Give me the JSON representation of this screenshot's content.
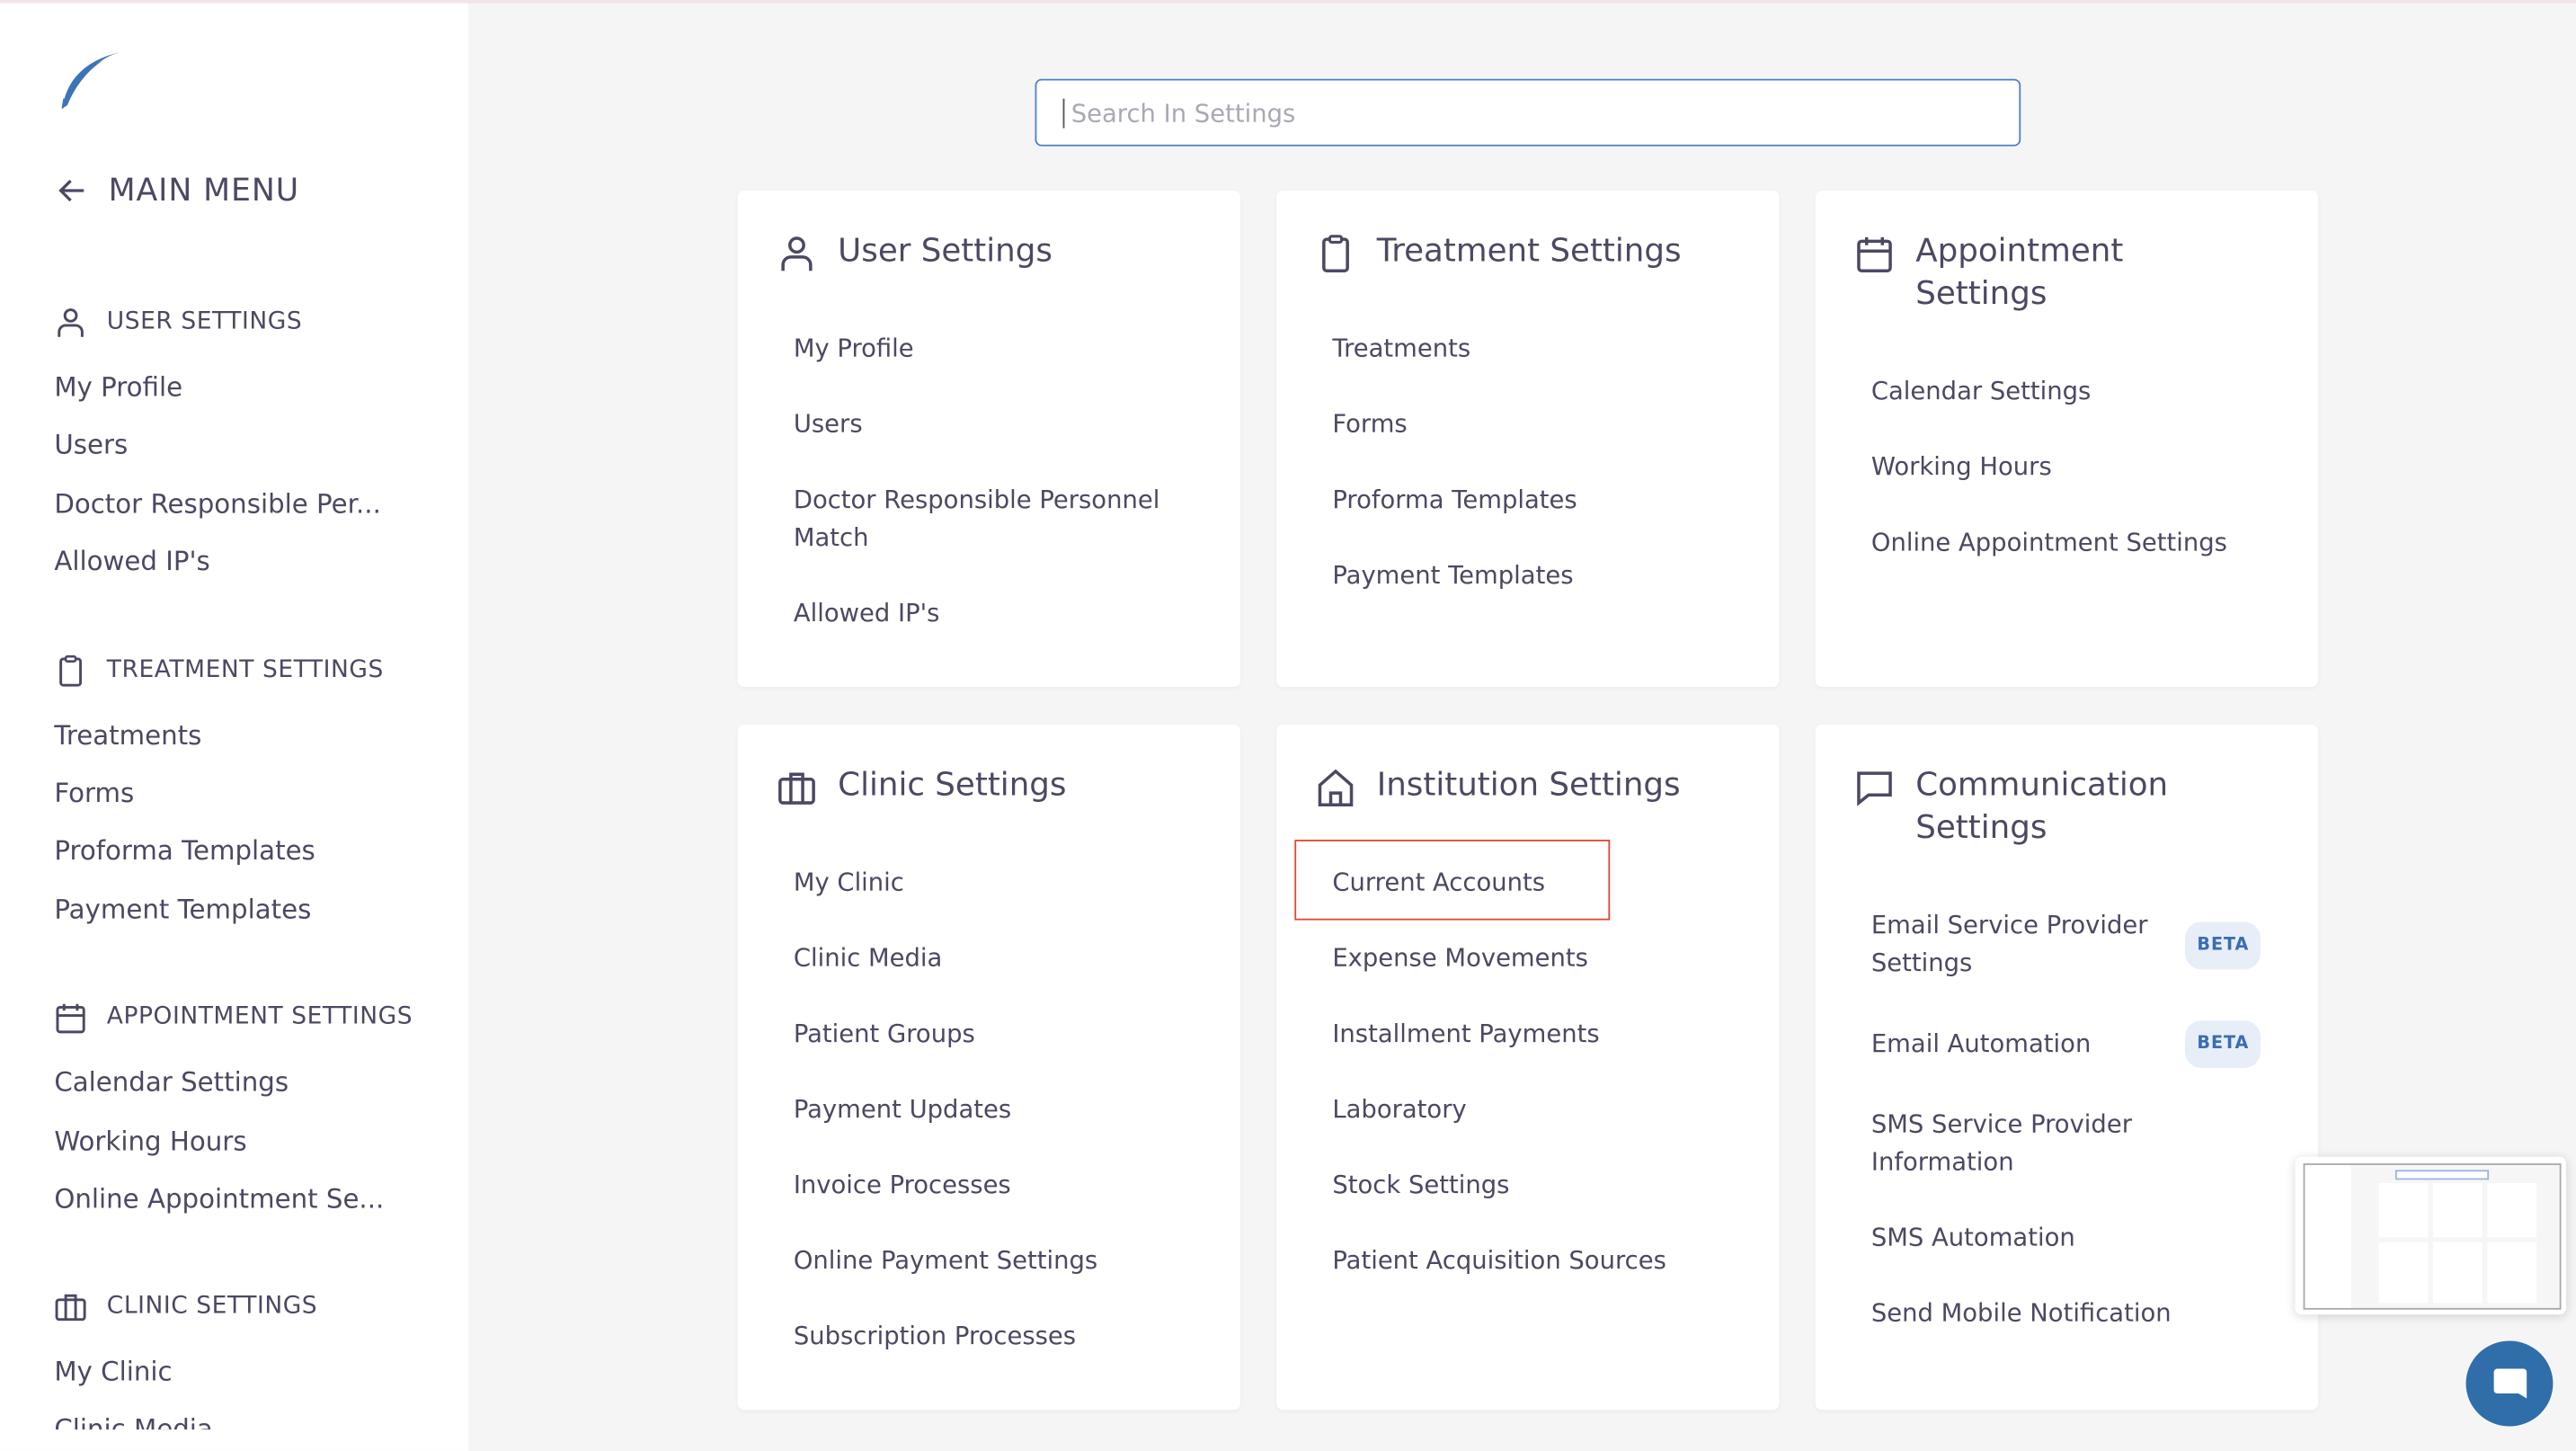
{
  "sidebar": {
    "main_menu": "MAIN MENU",
    "sections": [
      {
        "title": "USER SETTINGS",
        "icon": "user-icon",
        "items": [
          "My Profile",
          "Users",
          "Doctor Responsible Per...",
          "Allowed IP's"
        ]
      },
      {
        "title": "TREATMENT SETTINGS",
        "icon": "clipboard-icon",
        "items": [
          "Treatments",
          "Forms",
          "Proforma Templates",
          "Payment Templates"
        ]
      },
      {
        "title": "APPOINTMENT SETTINGS",
        "icon": "calendar-icon",
        "items": [
          "Calendar Settings",
          "Working Hours",
          "Online Appointment Se..."
        ]
      },
      {
        "title": "CLINIC SETTINGS",
        "icon": "briefcase-icon",
        "items": [
          "My Clinic",
          "Clinic Media"
        ]
      }
    ]
  },
  "search": {
    "placeholder": "Search In Settings",
    "value": ""
  },
  "cards": [
    {
      "title": "User Settings",
      "icon": "user-icon",
      "items": [
        "My Profile",
        "Users",
        "Doctor Responsible Personnel Match",
        "Allowed IP's"
      ]
    },
    {
      "title": "Treatment Settings",
      "icon": "clipboard-icon",
      "items": [
        "Treatments",
        "Forms",
        "Proforma Templates",
        "Payment Templates"
      ]
    },
    {
      "title": "Appointment Settings",
      "icon": "calendar-icon",
      "items": [
        "Calendar Settings",
        "Working Hours",
        "Online Appointment Settings"
      ]
    },
    {
      "title": "Clinic Settings",
      "icon": "briefcase-icon",
      "items": [
        "My Clinic",
        "Clinic Media",
        "Patient Groups",
        "Payment Updates",
        "Invoice Processes",
        "Online Payment Settings",
        "Subscription Processes"
      ]
    },
    {
      "title": "Institution Settings",
      "icon": "home-icon",
      "items": [
        "Current Accounts",
        "Expense Movements",
        "Installment Payments",
        "Laboratory",
        "Stock Settings",
        "Patient Acquisition Sources"
      ]
    },
    {
      "title": "Communication Settings",
      "icon": "chat-bubble-icon",
      "items": [
        "Email Service Provider Settings",
        "Email Automation",
        "SMS Service Provider Information",
        "SMS Automation",
        "Send Mobile Notification"
      ],
      "badges": [
        "BETA",
        "BETA"
      ]
    }
  ],
  "highlighted_item": "Current Accounts",
  "colors": {
    "accent": "#2f6ea9",
    "text": "#4d4862",
    "highlight": "#e0492f",
    "badge_bg": "#e7eef8",
    "badge_text": "#3a6db3"
  }
}
